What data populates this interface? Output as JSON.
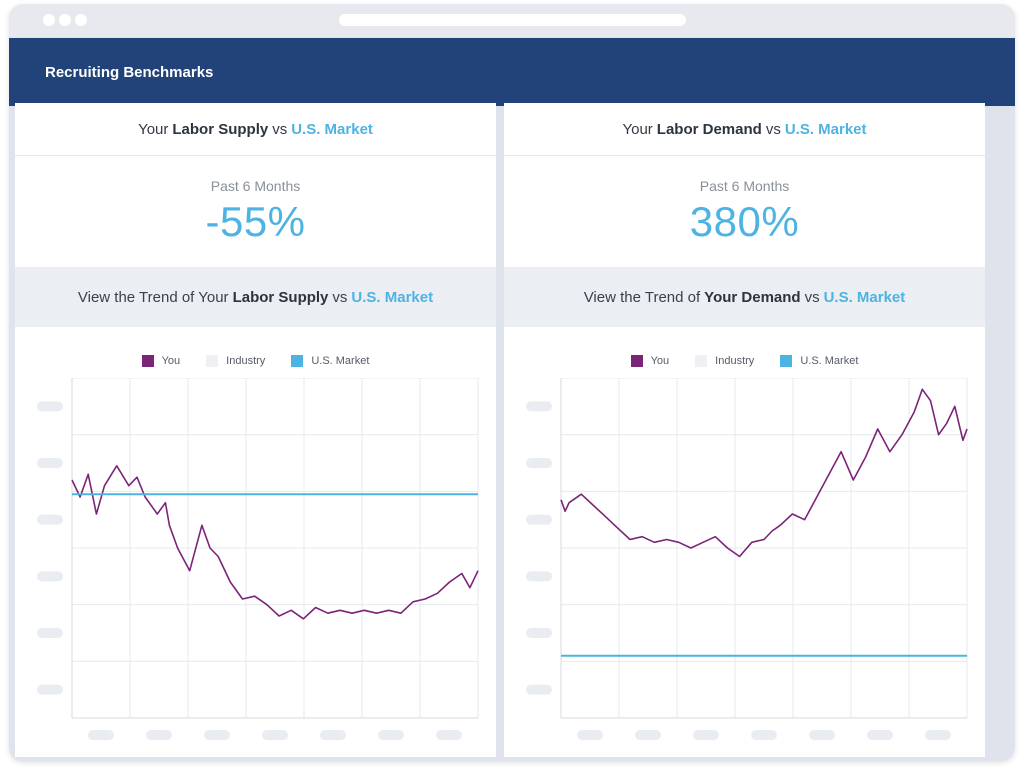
{
  "app": {
    "title": "Recruiting Benchmarks"
  },
  "colors": {
    "header": "#22437a",
    "accent": "#4db3e3",
    "you": "#7b2478",
    "industry": "#eef0f4",
    "us_market": "#4db3e3"
  },
  "panels": [
    {
      "title_pre": "Your",
      "title_bold": "Labor Supply",
      "title_vs": "vs",
      "title_accent": "U.S. Market",
      "period": "Past 6 Months",
      "value": "-55%",
      "trend_pre": "View the Trend of Your",
      "trend_bold": "Labor Supply",
      "trend_vs": "vs",
      "trend_accent": "U.S. Market",
      "legend": [
        {
          "label": "You",
          "icon": "square"
        },
        {
          "label": "Industry",
          "icon": "square"
        },
        {
          "label": "U.S. Market",
          "icon": "square"
        }
      ]
    },
    {
      "title_pre": "Your",
      "title_bold": "Labor Demand",
      "title_vs": "vs",
      "title_accent": "U.S. Market",
      "period": "Past 6 Months",
      "value": "380%",
      "trend_pre": "View the Trend of",
      "trend_bold": "Your Demand",
      "trend_vs": "vs",
      "trend_accent": "U.S. Market",
      "legend": [
        {
          "label": "You",
          "icon": "square"
        },
        {
          "label": "Industry",
          "icon": "square"
        },
        {
          "label": "U.S. Market",
          "icon": "square"
        }
      ]
    }
  ],
  "chart_data": [
    {
      "type": "line",
      "axis_labels_shown": false,
      "ylim": [
        0,
        6
      ],
      "xlim": [
        0,
        100
      ],
      "series": [
        {
          "name": "You",
          "x": [
            0,
            2,
            4,
            6,
            8,
            11,
            14,
            16,
            18,
            21,
            23,
            24,
            26,
            29,
            32,
            34,
            36,
            39,
            42,
            45,
            48,
            51,
            54,
            57,
            60,
            63,
            66,
            69,
            72,
            75,
            78,
            81,
            84,
            87,
            90,
            93,
            96,
            98,
            100
          ],
          "values": [
            4.2,
            3.9,
            4.3,
            3.6,
            4.1,
            4.45,
            4.1,
            4.25,
            3.9,
            3.6,
            3.8,
            3.4,
            3.0,
            2.6,
            3.4,
            3.0,
            2.85,
            2.4,
            2.1,
            2.15,
            2.0,
            1.8,
            1.9,
            1.75,
            1.95,
            1.85,
            1.9,
            1.85,
            1.9,
            1.85,
            1.9,
            1.85,
            2.05,
            2.1,
            2.2,
            2.4,
            2.55,
            2.3,
            2.6
          ]
        },
        {
          "name": "U.S. Market",
          "x": [
            0,
            100
          ],
          "values": [
            3.95,
            3.95
          ]
        }
      ]
    },
    {
      "type": "line",
      "axis_labels_shown": false,
      "ylim": [
        0,
        6
      ],
      "xlim": [
        0,
        100
      ],
      "series": [
        {
          "name": "You",
          "x": [
            0,
            1,
            2,
            5,
            8,
            11,
            14,
            17,
            20,
            23,
            26,
            29,
            32,
            35,
            38,
            41,
            44,
            47,
            50,
            52,
            54,
            57,
            60,
            63,
            66,
            69,
            72,
            75,
            78,
            81,
            84,
            87,
            89,
            91,
            93,
            95,
            97,
            99,
            100
          ],
          "values": [
            3.85,
            3.65,
            3.8,
            3.95,
            3.75,
            3.55,
            3.35,
            3.15,
            3.2,
            3.1,
            3.15,
            3.1,
            3.0,
            3.1,
            3.2,
            3.0,
            2.85,
            3.1,
            3.15,
            3.3,
            3.4,
            3.6,
            3.5,
            3.9,
            4.3,
            4.7,
            4.2,
            4.6,
            5.1,
            4.7,
            5.0,
            5.4,
            5.8,
            5.6,
            5.0,
            5.2,
            5.5,
            4.9,
            5.1
          ]
        },
        {
          "name": "U.S. Market",
          "x": [
            0,
            100
          ],
          "values": [
            1.1,
            1.1
          ]
        }
      ]
    }
  ]
}
